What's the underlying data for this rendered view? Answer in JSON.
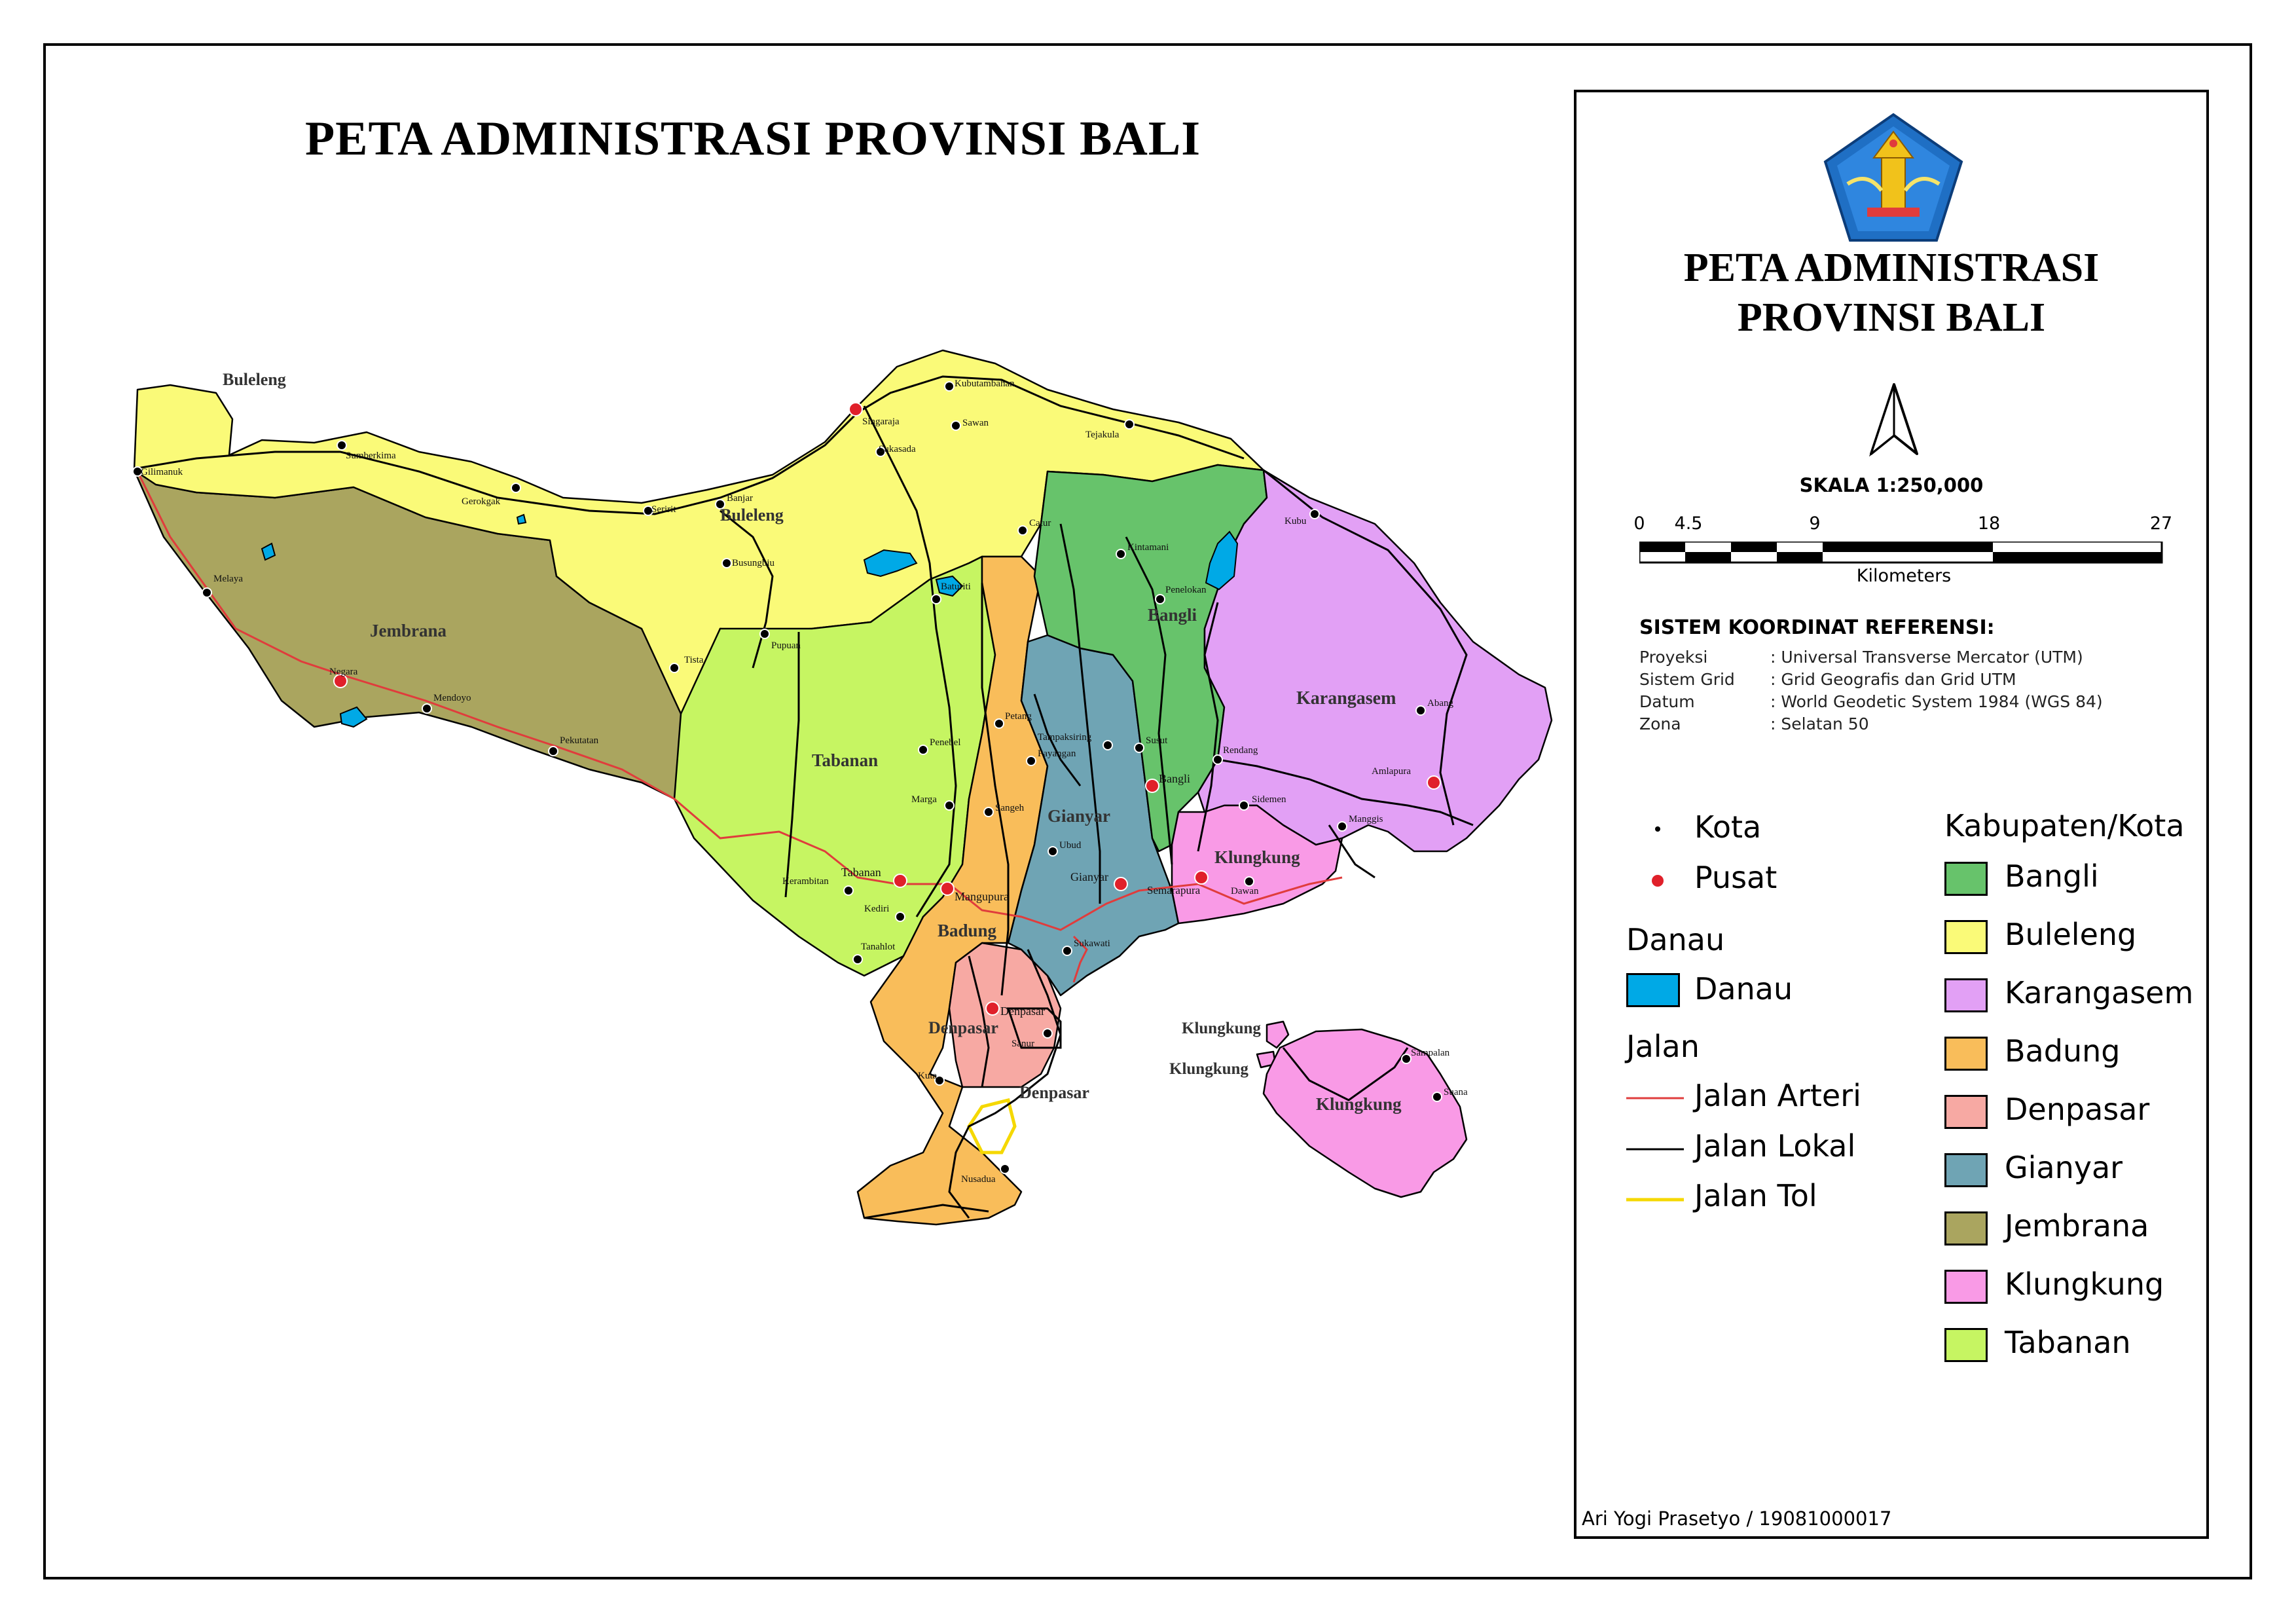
{
  "title": "PETA ADMINISTRASI PROVINSI BALI",
  "legend_panel": {
    "title_line1": "PETA ADMINISTRASI",
    "title_line2": "PROVINSI BALI",
    "logo_icon": "bali-emblem-icon",
    "north_arrow_icon": "north-arrow-icon",
    "scale_text": "SKALA  1:250,000",
    "scale_ticks": [
      "0",
      "4.5",
      "9",
      "18",
      "27"
    ],
    "scale_unit": "Kilometers",
    "crs": {
      "title": "SISTEM KOORDINAT REFERENSI:",
      "rows": [
        {
          "key": "Proyeksi",
          "value": ": Universal Transverse Mercator (UTM)"
        },
        {
          "key": "Sistem Grid",
          "value": ": Grid Geografis dan Grid UTM"
        },
        {
          "key": "Datum",
          "value": ": World Geodetic System 1984 (WGS 84)"
        },
        {
          "key": "Zona",
          "value": ": Selatan 50"
        }
      ]
    },
    "point_legend": [
      {
        "label": "Kota",
        "color": "#000000"
      },
      {
        "label": "Pusat",
        "color": "#e0202a"
      }
    ],
    "lake_heading": "Danau",
    "lake_label": "Danau",
    "lake_color": "#00a9e6",
    "road_heading": "Jalan",
    "roads": [
      {
        "label": "Jalan Arteri",
        "color": "#e03c3c"
      },
      {
        "label": "Jalan Lokal",
        "color": "#000000"
      },
      {
        "label": "Jalan Tol",
        "color": "#f5d800"
      }
    ],
    "regency_heading": "Kabupaten/Kota",
    "regencies": [
      {
        "label": "Bangli",
        "color": "#67c36b"
      },
      {
        "label": "Buleleng",
        "color": "#fafa78"
      },
      {
        "label": "Karangasem",
        "color": "#e2a0f5"
      },
      {
        "label": "Badung",
        "color": "#f9bd5a"
      },
      {
        "label": "Denpasar",
        "color": "#f7a9a3"
      },
      {
        "label": "Gianyar",
        "color": "#6fa4b4"
      },
      {
        "label": "Jembrana",
        "color": "#aaa55f"
      },
      {
        "label": "Klungkung",
        "color": "#f99ae6"
      },
      {
        "label": "Tabanan",
        "color": "#c6f562"
      }
    ],
    "author": "Ari Yogi Prasetyo / 19081000017"
  },
  "map_labels": {
    "regencies": [
      {
        "name": "Buleleng"
      },
      {
        "name": "Buleleng"
      },
      {
        "name": "Jembrana"
      },
      {
        "name": "Tabanan"
      },
      {
        "name": "Bangli"
      },
      {
        "name": "Karangasem"
      },
      {
        "name": "Gianyar"
      },
      {
        "name": "Klungkung"
      },
      {
        "name": "Badung"
      },
      {
        "name": "Denpasar"
      },
      {
        "name": "Denpasar"
      },
      {
        "name": "Klungkung"
      },
      {
        "name": "Klungkung"
      },
      {
        "name": "Klungkung"
      }
    ],
    "cities": [
      "Gilimanuk",
      "Sumberkima",
      "Gerokgak",
      "Seririt",
      "Banjar",
      "Busungbiu",
      "Singaraja",
      "Sukasada",
      "Sawan",
      "Kubutambahan",
      "Tejakula",
      "Melaya",
      "Negara",
      "Mendoyo",
      "Pekutatan",
      "Pupuan",
      "Tista",
      "Penebel",
      "Marga",
      "Baturiti",
      "Petang",
      "Catur",
      "Kintamani",
      "Penelokan",
      "Tampaksiring",
      "Payangan",
      "Susut",
      "Bangli",
      "Kubu",
      "Abang",
      "Amlapura",
      "Rendang",
      "Sidemen",
      "Manggis",
      "Sangeh",
      "Ubud",
      "Gianyar",
      "Semarapura",
      "Dawan",
      "Tabanan",
      "Mangupura",
      "Kerambitan",
      "Kediri",
      "Tanahlot",
      "Sukawati",
      "Denpasar",
      "Sanur",
      "Kuta",
      "Nusadua",
      "Sampalan",
      "Suana"
    ]
  }
}
